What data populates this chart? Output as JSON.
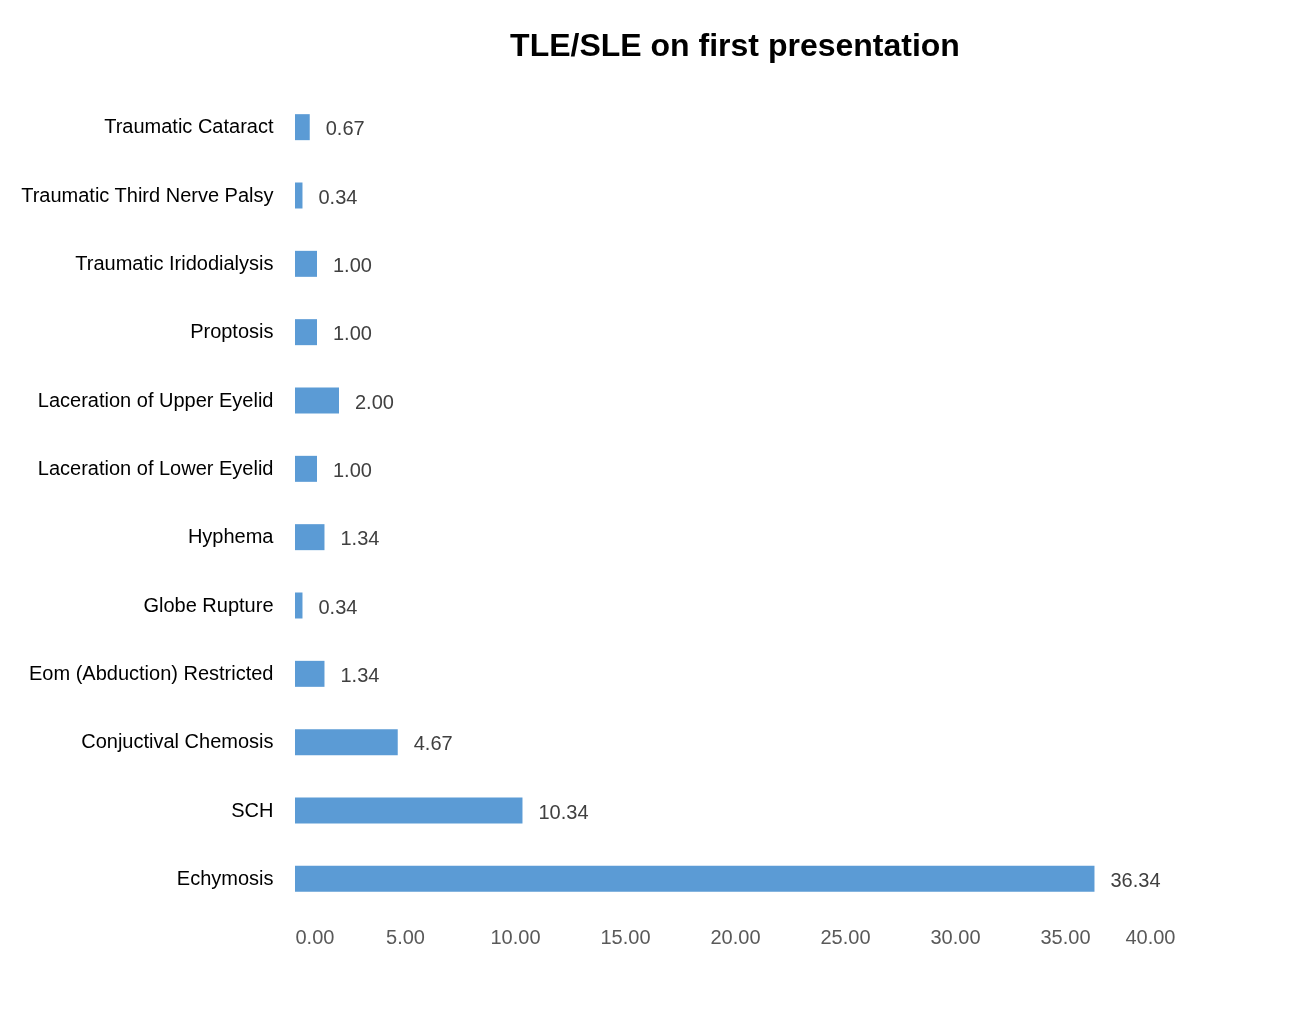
{
  "chart_data": {
    "type": "bar",
    "orientation": "horizontal",
    "title": "TLE/SLE on first presentation",
    "categories": [
      "Traumatic Cataract",
      "Traumatic Third Nerve Palsy",
      "Traumatic Iridodialysis",
      "Proptosis",
      "Laceration of Upper Eyelid",
      "Laceration of Lower Eyelid",
      "Hyphema",
      "Globe Rupture",
      "Eom (Abduction)  Restricted",
      "Conjuctival Chemosis",
      "SCH",
      "Echymosis"
    ],
    "values": [
      0.67,
      0.34,
      1.0,
      1.0,
      2.0,
      1.0,
      1.34,
      0.34,
      1.34,
      4.67,
      10.34,
      36.34
    ],
    "value_labels": [
      "0.67",
      "0.34",
      "1.00",
      "1.00",
      "2.00",
      "1.00",
      "1.34",
      "0.34",
      "1.34",
      "4.67",
      "10.34",
      "36.34"
    ],
    "color": "#5b9bd5",
    "xlim": [
      0,
      40
    ],
    "xticks": [
      {
        "value": 0,
        "label": "0.00"
      },
      {
        "value": 5,
        "label": "5.00"
      },
      {
        "value": 10,
        "label": "10.00"
      },
      {
        "value": 15,
        "label": "15.00"
      },
      {
        "value": 20,
        "label": "20.00"
      },
      {
        "value": 25,
        "label": "25.00"
      },
      {
        "value": 30,
        "label": "30.00"
      },
      {
        "value": 35,
        "label": "35.00"
      },
      {
        "value": 40,
        "label": "40.00"
      }
    ],
    "grid": false
  }
}
